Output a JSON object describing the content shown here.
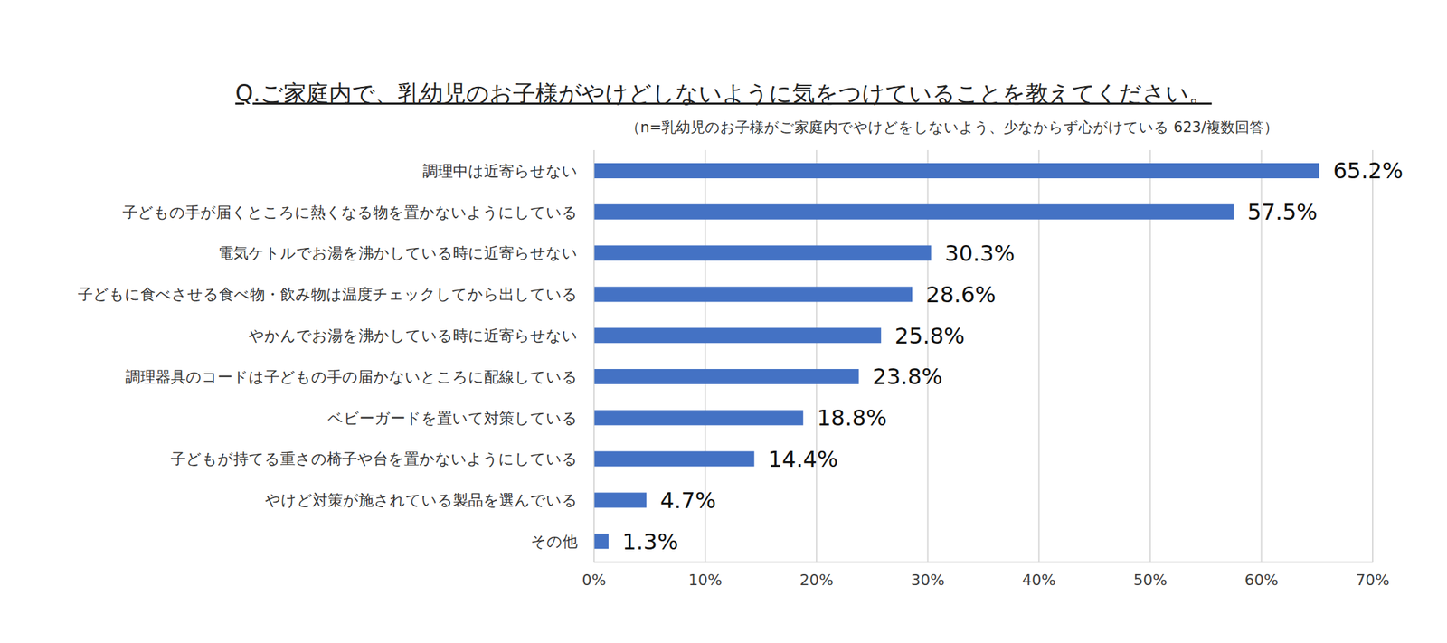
{
  "chart_data": {
    "type": "bar",
    "orientation": "horizontal",
    "title": "Q.ご家庭内で、乳幼児のお子様がやけどしないように気をつけていることを教えてください。",
    "subtitle": "（n=乳幼児のお子様がご家庭内でやけどをしないよう、少なからず心がけている 623/複数回答）",
    "categories": [
      "調理中は近寄らせない",
      "子どもの手が届くところに熱くなる物を置かないようにしている",
      "電気ケトルでお湯を沸かしている時に近寄らせない",
      "子どもに食べさせる食べ物・飲み物は温度チェックしてから出している",
      "やかんでお湯を沸かしている時に近寄らせない",
      "調理器具のコードは子どもの手の届かないところに配線している",
      "ベビーガードを置いて対策している",
      "子どもが持てる重さの椅子や台を置かないようにしている",
      "やけど対策が施されている製品を選んでいる",
      "その他"
    ],
    "values": [
      65.2,
      57.5,
      30.3,
      28.6,
      25.8,
      23.8,
      18.8,
      14.4,
      4.7,
      1.3
    ],
    "value_labels": [
      "65.2%",
      "57.5%",
      "30.3%",
      "28.6%",
      "25.8%",
      "23.8%",
      "18.8%",
      "14.4%",
      "4.7%",
      "1.3%"
    ],
    "color": "#4472c4",
    "xlim": [
      0,
      70
    ],
    "xticks": [
      {
        "value": 0,
        "label": "0%"
      },
      {
        "value": 10,
        "label": "10%"
      },
      {
        "value": 20,
        "label": "20%"
      },
      {
        "value": 30,
        "label": "30%"
      },
      {
        "value": 40,
        "label": "40%"
      },
      {
        "value": 50,
        "label": "50%"
      },
      {
        "value": 60,
        "label": "60%"
      },
      {
        "value": 70,
        "label": "70%"
      }
    ],
    "grid": true,
    "data_labels": true
  }
}
